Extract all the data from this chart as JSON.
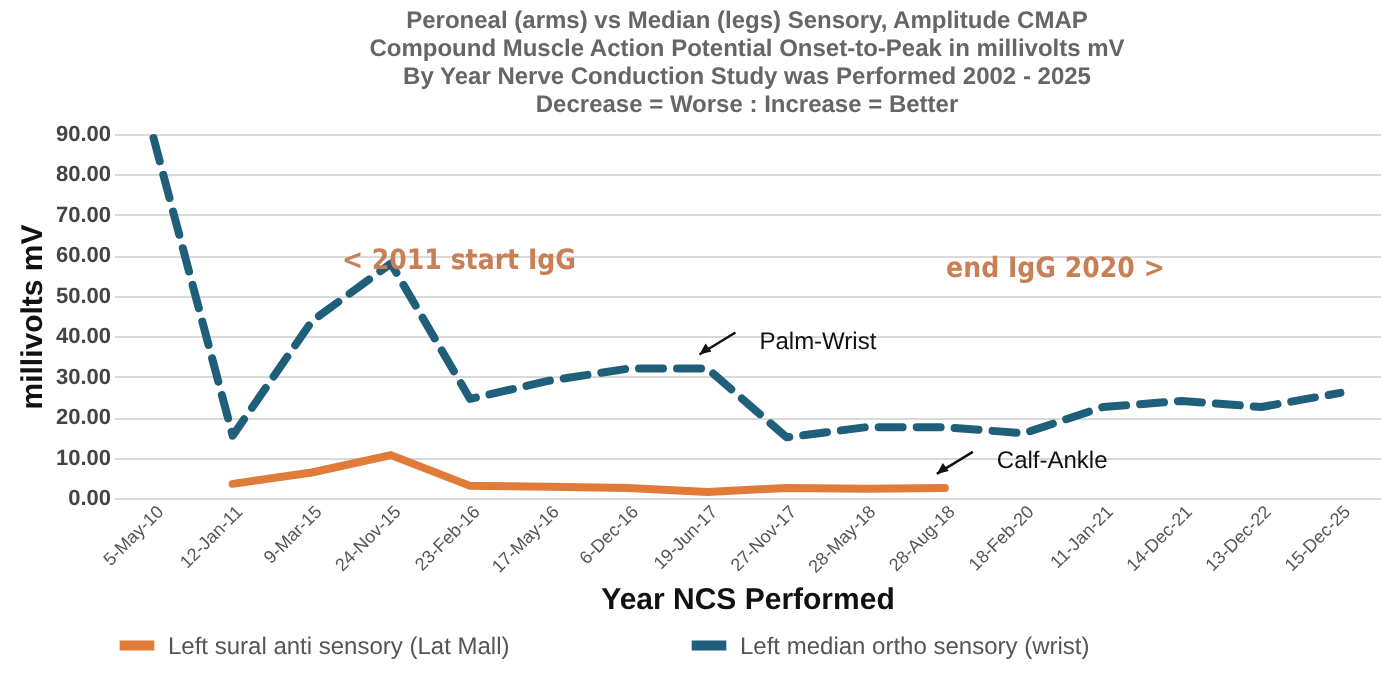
{
  "chart_data": {
    "type": "line",
    "title": "Peroneal (arms)  vs Median (legs) Sensory, Amplitude CMAP",
    "subtitle": "Compound Muscle Action Potential Onset-to-Peak in millivolts mV\nBy Year Nerve Conduction Study was Performed 2002 - 2025\nDecrease = Worse : Increase = Better",
    "xlabel": "Year NCS Performed",
    "ylabel": "millivolts mV",
    "categories": [
      "5-May-10",
      "12-Jan-11",
      "9-Mar-15",
      "24-Nov-15",
      "23-Feb-16",
      "17-May-16",
      "6-Dec-16",
      "19-Jun-17",
      "27-Nov-17",
      "28-May-18",
      "28-Aug-18",
      "18-Feb-20",
      "11-Jan-21",
      "14-Dec-21",
      "13-Dec-22",
      "15-Dec-25"
    ],
    "series": [
      {
        "name": "Left sural anti sensory (Lat Mall)",
        "color": "#e07b39",
        "line_style": "solid",
        "values": [
          null,
          3.5,
          6.3,
          10.6,
          3,
          2.8,
          2.5,
          1.5,
          2.5,
          2.3,
          2.5,
          null,
          null,
          null,
          null,
          null
        ]
      },
      {
        "name": "Left median ortho sensory (wrist)",
        "color": "#1f5f7a",
        "line_style": "dashed",
        "values": [
          89,
          15.4,
          43.7,
          58,
          24.5,
          29,
          32,
          32,
          15,
          17.5,
          17.5,
          16,
          22.5,
          24,
          22.5,
          26
        ]
      }
    ],
    "ylim": [
      0,
      90
    ],
    "yticks": [
      {
        "value": 0,
        "label": "0.00"
      },
      {
        "value": 10,
        "label": "10.00"
      },
      {
        "value": 20,
        "label": "20.00"
      },
      {
        "value": 30,
        "label": "30.00"
      },
      {
        "value": 40,
        "label": "40.00"
      },
      {
        "value": 50,
        "label": "50.00"
      },
      {
        "value": 60,
        "label": "60.00"
      },
      {
        "value": 70,
        "label": "70.00"
      },
      {
        "value": 80,
        "label": "80.00"
      },
      {
        "value": 90,
        "label": "90.00"
      }
    ],
    "grid": "y",
    "legend": "bottom",
    "marker": "none",
    "annotations": [
      "< 2011 start IgG",
      "end IgG 2020 >",
      {
        "text": "Palm-Wrist",
        "x": "19-Jun-17",
        "y": 32
      },
      {
        "text": "Calf-Ankle",
        "x": "28-Aug-18",
        "y": 2.5
      }
    ]
  }
}
